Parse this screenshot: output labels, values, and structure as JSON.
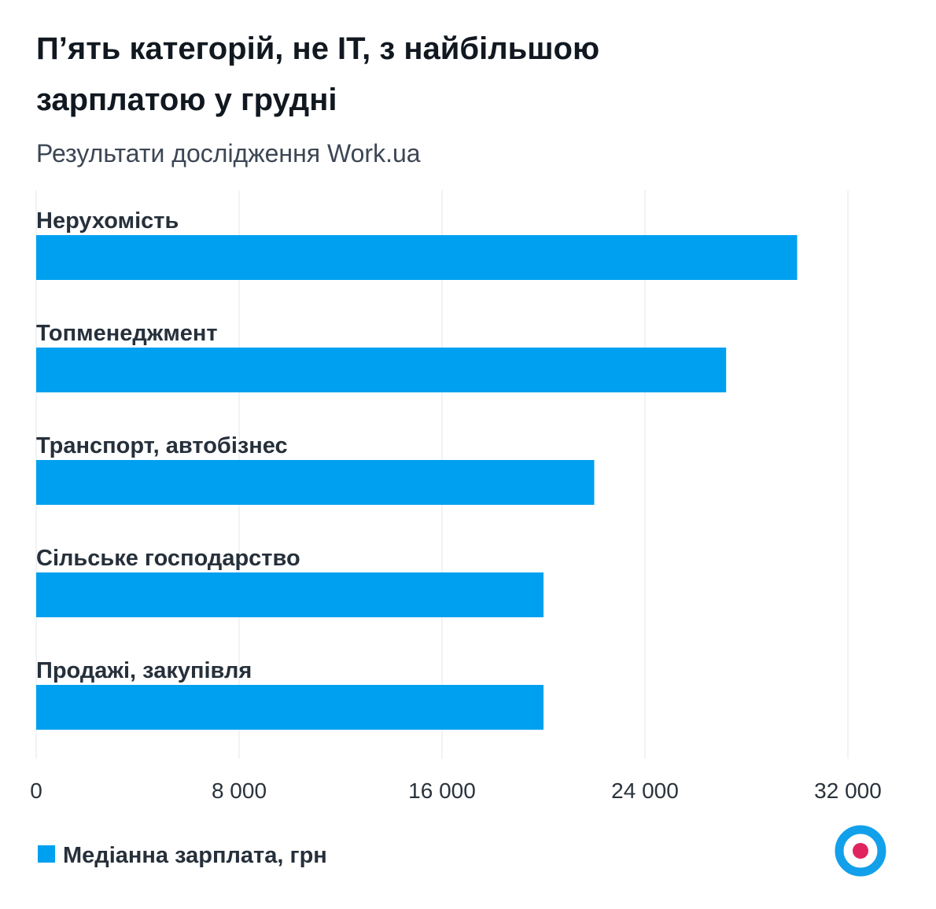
{
  "title_line1": "П’ять категорій, не IT, з найбільшою",
  "title_line2": "зарплатою у грудні",
  "subtitle": "Результати дослідження Work.ua",
  "colors": {
    "bar": "#00a0f0",
    "logo_ring": "#12a0ea",
    "logo_dot": "#e0245e"
  },
  "legend_label": "Медіанна зарплата, грн",
  "logo_icon": "target-logo-icon",
  "chart_data": {
    "type": "bar",
    "orientation": "horizontal",
    "title": "П’ять категорій, не IT, з найбільшою зарплатою у грудні",
    "subtitle": "Результати дослідження Work.ua",
    "categories": [
      "Нерухомість",
      "Топменеджмент",
      "Транспорт, автобізнес",
      "Сільське господарство",
      "Продажі, закупівля"
    ],
    "series": [
      {
        "name": "Медіанна зарплата, грн",
        "values": [
          30000,
          27200,
          22000,
          20000,
          20000
        ]
      }
    ],
    "xlim": [
      0,
      32000
    ],
    "xticks": [
      0,
      8000,
      16000,
      24000,
      32000
    ],
    "xtick_labels": [
      "0",
      "8 000",
      "16 000",
      "24 000",
      "32 000"
    ],
    "grid": true,
    "legend_position": "bottom-left"
  }
}
